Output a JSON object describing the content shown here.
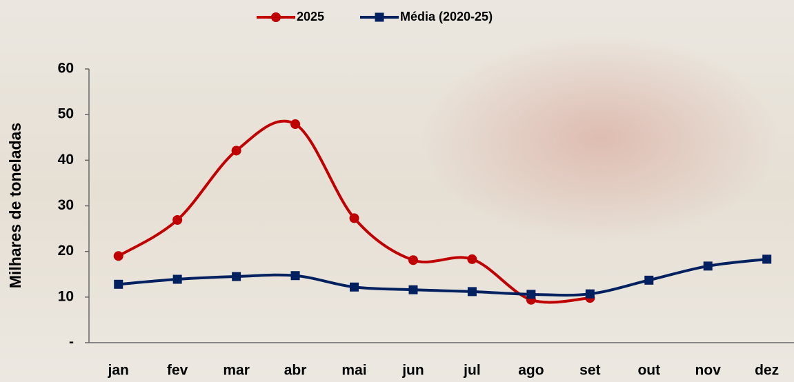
{
  "chart_data": {
    "type": "line",
    "y_label": "Milhares de toneladas",
    "categories": [
      "jan",
      "fev",
      "mar",
      "abr",
      "mai",
      "jun",
      "jul",
      "ago",
      "set",
      "out",
      "nov",
      "dez"
    ],
    "series": [
      {
        "name": "2025",
        "color": "#c00000",
        "marker": "circle",
        "values": [
          19.0,
          26.9,
          42.1,
          47.9,
          27.3,
          18.1,
          18.3,
          9.4,
          9.8,
          null,
          null,
          null
        ]
      },
      {
        "name": "Média (2020-25)",
        "color": "#002060",
        "marker": "square",
        "values": [
          12.8,
          13.9,
          14.5,
          14.7,
          12.2,
          11.6,
          11.2,
          10.6,
          10.7,
          13.7,
          16.8,
          18.3
        ]
      }
    ],
    "ylim": [
      0,
      60
    ],
    "yticks": [
      {
        "value": 0,
        "label": "-"
      },
      10,
      20,
      30,
      40,
      50,
      60
    ],
    "smooth": true,
    "legend": "top"
  }
}
